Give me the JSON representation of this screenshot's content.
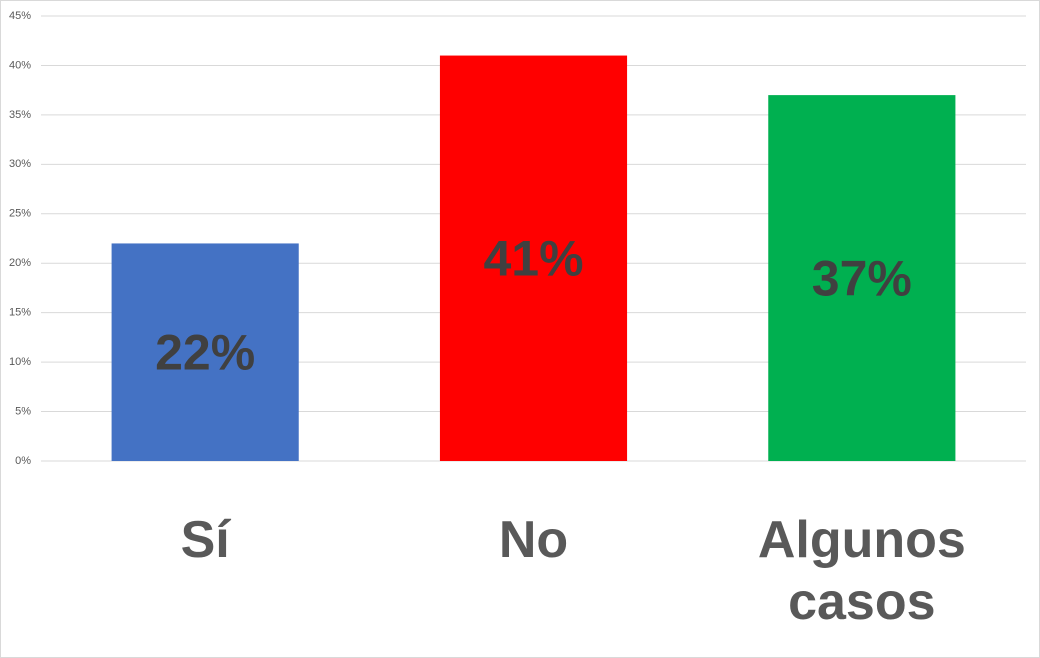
{
  "chart_data": {
    "type": "bar",
    "categories": [
      "Sí",
      "No",
      "Algunos casos"
    ],
    "values": [
      22,
      41,
      37
    ],
    "value_labels": [
      "22%",
      "41%",
      "37%"
    ],
    "colors": [
      "#4472c4",
      "#ff0000",
      "#00b050"
    ],
    "ylim": [
      0,
      45
    ],
    "yticks": [
      {
        "value": 0,
        "label": "0%"
      },
      {
        "value": 5,
        "label": "5%"
      },
      {
        "value": 10,
        "label": "10%"
      },
      {
        "value": 15,
        "label": "15%"
      },
      {
        "value": 20,
        "label": "20%"
      },
      {
        "value": 25,
        "label": "25%"
      },
      {
        "value": 30,
        "label": "30%"
      },
      {
        "value": 35,
        "label": "35%"
      },
      {
        "value": 40,
        "label": "40%"
      },
      {
        "value": 45,
        "label": "45%"
      }
    ],
    "grid": true
  }
}
